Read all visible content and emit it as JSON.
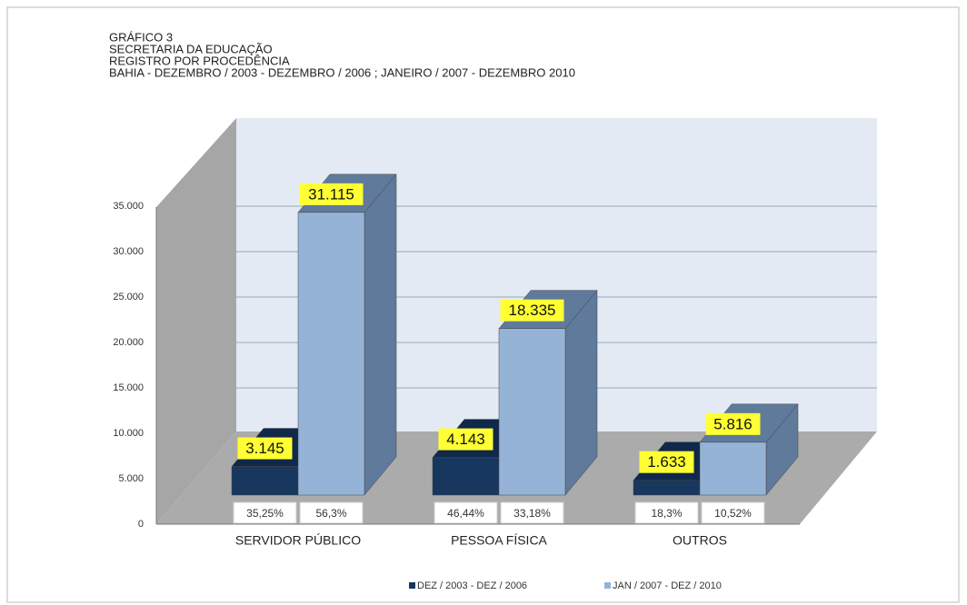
{
  "chart_data": {
    "type": "bar3d",
    "title": [
      "GRÁFICO 3",
      "SECRETARIA DA EDUCAÇÃO",
      "REGISTRO POR PROCEDÊNCIA",
      "BAHIA - DEZEMBRO /  2003 - DEZEMBRO / 2006 ;  JANEIRO / 2007 - DEZEMBRO 2010"
    ],
    "categories": [
      "SERVIDOR PÚBLICO",
      "PESSOA FÍSICA",
      "OUTROS"
    ],
    "series": [
      {
        "name": "DEZ / 2003 - DEZ / 2006",
        "color": "#17375e",
        "side": "#10284a",
        "values": [
          3145,
          4143,
          1633
        ],
        "value_labels": [
          "3.145",
          "4.143",
          "1.633"
        ],
        "shares": [
          35.25,
          46.44,
          18.3
        ],
        "share_labels": [
          "35,25%",
          "46,44%",
          "18,3%"
        ]
      },
      {
        "name": "JAN / 2007 - DEZ / 2010",
        "color": "#95b3d7",
        "side": "#5f7a9b",
        "values": [
          31115,
          18335,
          5816
        ],
        "value_labels": [
          "31.115",
          "18.335",
          "5.816"
        ],
        "shares": [
          56.3,
          33.18,
          10.52
        ],
        "share_labels": [
          "56,3%",
          "33,18%",
          "10,52%"
        ]
      }
    ],
    "ylim": [
      0,
      35000
    ],
    "yticks": [
      0,
      {
        "value": 5000,
        "label": "5.000"
      },
      {
        "value": 10000,
        "label": "10.000"
      },
      {
        "value": 15000,
        "label": "15.000"
      },
      {
        "value": 20000,
        "label": "20.000"
      },
      {
        "value": 25000,
        "label": "25.000"
      },
      {
        "value": 30000,
        "label": "30.000"
      },
      {
        "value": 35000,
        "label": "35.000"
      }
    ],
    "grid": true,
    "legend": "bottom"
  }
}
